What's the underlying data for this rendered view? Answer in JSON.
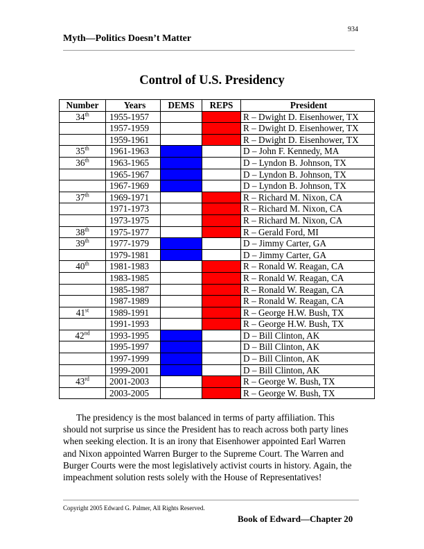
{
  "page_number": "934",
  "header_title": "Myth—Politics Doesn’t Matter",
  "title": "Control of U.S. Presidency",
  "colors": {
    "dems": "#0000ff",
    "reps": "#ff0000"
  },
  "table": {
    "headers": [
      "Number",
      "Years",
      "DEMS",
      "REPS",
      "President"
    ],
    "rows": [
      {
        "number": "34",
        "suffix": "th",
        "years": "1955-1957",
        "party": "R",
        "president": "R – Dwight D. Eisenhower, TX"
      },
      {
        "number": "",
        "suffix": "",
        "years": "1957-1959",
        "party": "R",
        "president": "R – Dwight D. Eisenhower, TX"
      },
      {
        "number": "",
        "suffix": "",
        "years": "1959-1961",
        "party": "R",
        "president": "R – Dwight D. Eisenhower, TX"
      },
      {
        "number": "35",
        "suffix": "th",
        "years": "1961-1963",
        "party": "D",
        "president": "D – John F. Kennedy, MA"
      },
      {
        "number": "36",
        "suffix": "th",
        "years": "1963-1965",
        "party": "D",
        "president": "D – Lyndon B. Johnson, TX"
      },
      {
        "number": "",
        "suffix": "",
        "years": "1965-1967",
        "party": "D",
        "president": "D – Lyndon B. Johnson, TX"
      },
      {
        "number": "",
        "suffix": "",
        "years": "1967-1969",
        "party": "D",
        "president": "D – Lyndon B. Johnson, TX"
      },
      {
        "number": "37",
        "suffix": "th",
        "years": "1969-1971",
        "party": "R",
        "president": "R – Richard M. Nixon, CA"
      },
      {
        "number": "",
        "suffix": "",
        "years": "1971-1973",
        "party": "R",
        "president": "R – Richard M. Nixon, CA"
      },
      {
        "number": "",
        "suffix": "",
        "years": "1973-1975",
        "party": "R",
        "president": "R – Richard M. Nixon, CA"
      },
      {
        "number": "38",
        "suffix": "th",
        "years": "1975-1977",
        "party": "R",
        "president": "R – Gerald Ford, MI"
      },
      {
        "number": "39",
        "suffix": "th",
        "years": "1977-1979",
        "party": "D",
        "president": "D – Jimmy Carter, GA"
      },
      {
        "number": "",
        "suffix": "",
        "years": "1979-1981",
        "party": "D",
        "president": "D – Jimmy Carter, GA"
      },
      {
        "number": "40",
        "suffix": "th",
        "years": "1981-1983",
        "party": "R",
        "president": "R – Ronald W. Reagan, CA"
      },
      {
        "number": "",
        "suffix": "",
        "years": "1983-1985",
        "party": "R",
        "president": "R – Ronald W. Reagan, CA"
      },
      {
        "number": "",
        "suffix": "",
        "years": "1985-1987",
        "party": "R",
        "president": "R – Ronald W. Reagan, CA"
      },
      {
        "number": "",
        "suffix": "",
        "years": "1987-1989",
        "party": "R",
        "president": "R – Ronald W. Reagan, CA"
      },
      {
        "number": "41",
        "suffix": "st",
        "years": "1989-1991",
        "party": "R",
        "president": "R – George H.W. Bush, TX"
      },
      {
        "number": "",
        "suffix": "",
        "years": "1991-1993",
        "party": "R",
        "president": "R – George H.W. Bush, TX"
      },
      {
        "number": "42",
        "suffix": "nd",
        "years": "1993-1995",
        "party": "D",
        "president": "D – Bill Clinton, AK"
      },
      {
        "number": "",
        "suffix": "",
        "years": "1995-1997",
        "party": "D",
        "president": "D – Bill Clinton, AK"
      },
      {
        "number": "",
        "suffix": "",
        "years": "1997-1999",
        "party": "D",
        "president": "D – Bill Clinton, AK"
      },
      {
        "number": "",
        "suffix": "",
        "years": "1999-2001",
        "party": "D",
        "president": "D – Bill Clinton, AK"
      },
      {
        "number": "43",
        "suffix": "rd",
        "years": "2001-2003",
        "party": "R",
        "president": "R – George W. Bush, TX"
      },
      {
        "number": "",
        "suffix": "",
        "years": "2003-2005",
        "party": "R",
        "president": "R – George W. Bush, TX"
      }
    ]
  },
  "paragraph": "The presidency is the most balanced in terms of party affiliation.  This should not surprise us since the President has to reach across both party lines when seeking election.  It is an irony that Eisenhower appointed Earl Warren and Nixon appointed Warren Burger to the Supreme Court.  The Warren and Burger Courts were the most legislatively activist courts in history.  Again, the impeachment solution rests solely with the House of Representatives!",
  "copyright": "Copyright 2005 Edward G. Palmer, All Rights Reserved.",
  "footer_title": "Book of Edward—Chapter 20"
}
